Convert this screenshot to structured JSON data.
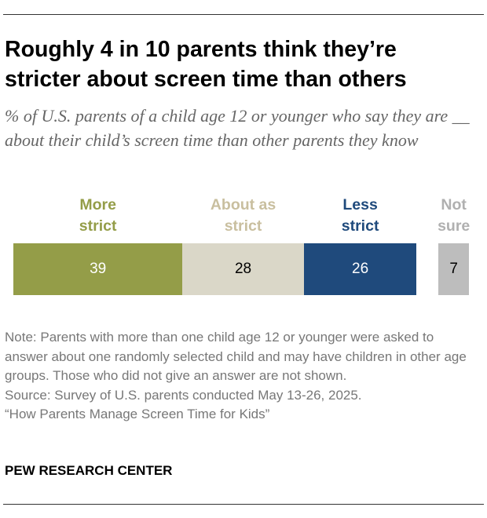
{
  "title": "Roughly 4 in 10 parents think they’re stricter about screen time than others",
  "subtitle": "% of U.S. parents of a child age 12 or younger who say they are __ about their child’s screen time than other parents they know",
  "chart_data": {
    "type": "bar",
    "orientation": "horizontal-stacked",
    "categories": [
      "More strict",
      "About as strict",
      "Less strict",
      "Not sure"
    ],
    "values": [
      39,
      28,
      26,
      7
    ],
    "colors": [
      "#949d48",
      "#dad7c8",
      "#1f4a7c",
      "#bdbdbd"
    ],
    "label_colors": [
      "#949d48",
      "#c9bf9f",
      "#1f4a7c",
      "#b0b0b0"
    ],
    "value_text_colors": [
      "#ffffff",
      "#000000",
      "#ffffff",
      "#000000"
    ]
  },
  "note": "Note: Parents with more than one child age 12 or younger were asked to answer about one randomly selected child and may have children in other age groups. Those who did not give an answer are not shown.",
  "source": "Source: Survey of U.S. parents conducted May 13-26, 2025.",
  "report": "“How Parents Manage Screen Time for Kids”",
  "brand": "PEW RESEARCH CENTER"
}
